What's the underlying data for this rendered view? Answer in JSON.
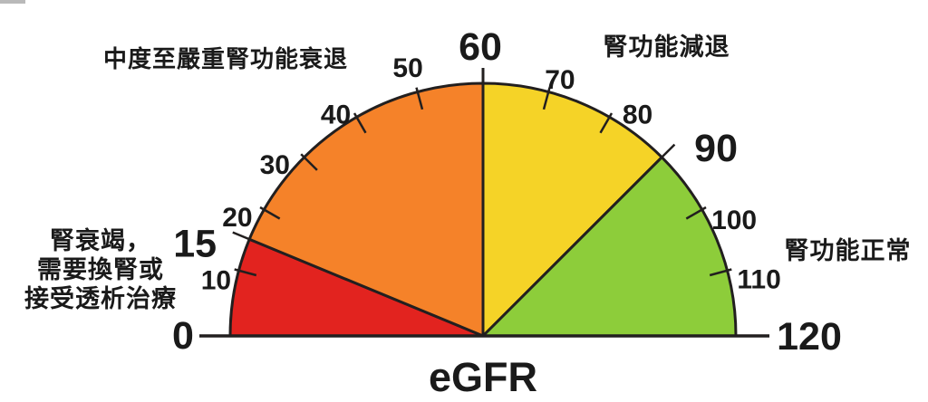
{
  "chart_data": {
    "type": "gauge",
    "title": "eGFR",
    "min": 0,
    "max": 120,
    "arc_span_degrees": 180,
    "outline_color": "#221f1f",
    "text_color": "#1a1a1a",
    "segments": [
      {
        "from": 0,
        "to": 15,
        "color": "#e2231f",
        "label": "腎衰竭，\n需要換腎或\n接受透析治療"
      },
      {
        "from": 15,
        "to": 60,
        "color": "#f58229",
        "label": "中度至嚴重腎功能衰退"
      },
      {
        "from": 60,
        "to": 90,
        "color": "#f5d327",
        "label": "腎功能減退"
      },
      {
        "from": 90,
        "to": 120,
        "color": "#8dcd3a",
        "label": "腎功能正常"
      }
    ],
    "ticks": [
      {
        "value": 0,
        "label": "0",
        "style": "end"
      },
      {
        "value": 10,
        "label": "10",
        "style": "minor",
        "nudge": [
          0,
          18
        ]
      },
      {
        "value": 15,
        "label": "15",
        "style": "boundary",
        "nudge": [
          -12,
          25
        ]
      },
      {
        "value": 20,
        "label": "20",
        "style": "minor",
        "nudge": [
          -7,
          22
        ]
      },
      {
        "value": 30,
        "label": "30",
        "style": "minor",
        "nudge": [
          -14,
          27
        ]
      },
      {
        "value": 40,
        "label": "40",
        "style": "minor",
        "nudge": [
          -10,
          20
        ]
      },
      {
        "value": 50,
        "label": "50",
        "style": "minor",
        "nudge": [
          -4,
          -1
        ]
      },
      {
        "value": 60,
        "label": "60",
        "style": "apex",
        "nudge": [
          -3,
          12
        ]
      },
      {
        "value": 70,
        "label": "70",
        "style": "minor",
        "nudge": [
          6,
          12
        ]
      },
      {
        "value": 80,
        "label": "80",
        "style": "minor",
        "nudge": [
          18,
          20
        ]
      },
      {
        "value": 90,
        "label": "90",
        "style": "boundary",
        "nudge": [
          23,
          27
        ]
      },
      {
        "value": 100,
        "label": "100",
        "style": "minor",
        "nudge": [
          13,
          25
        ]
      },
      {
        "value": 110,
        "label": "110",
        "style": "minor",
        "nudge": [
          10,
          17
        ]
      },
      {
        "value": 120,
        "label": "120",
        "style": "end",
        "nudge": [
          29,
          1
        ]
      }
    ]
  }
}
